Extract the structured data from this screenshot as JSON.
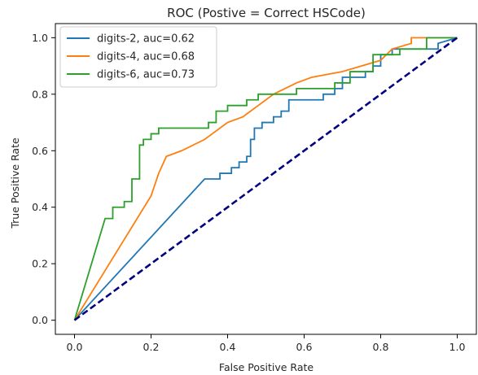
{
  "chart_data": {
    "type": "line",
    "title": "ROC (Postive = Correct HSCode)",
    "xlabel": "False Positive Rate",
    "ylabel": "True Positive Rate",
    "xlim": [
      -0.05,
      1.05
    ],
    "ylim": [
      -0.05,
      1.05
    ],
    "xticks": [
      0.0,
      0.2,
      0.4,
      0.6,
      0.8,
      1.0
    ],
    "xtick_labels": [
      "0.0",
      "0.2",
      "0.4",
      "0.6",
      "0.8",
      "1.0"
    ],
    "yticks": [
      0.0,
      0.2,
      0.4,
      0.6,
      0.8,
      1.0
    ],
    "ytick_labels": [
      "0.0",
      "0.2",
      "0.4",
      "0.6",
      "0.8",
      "1.0"
    ],
    "grid": false,
    "legend_position": "upper-left",
    "series": [
      {
        "name": "digits-2, auc=0.62",
        "color": "#1f77b4",
        "x": [
          0.0,
          0.34,
          0.38,
          0.38,
          0.41,
          0.41,
          0.43,
          0.43,
          0.45,
          0.45,
          0.46,
          0.46,
          0.47,
          0.47,
          0.49,
          0.49,
          0.52,
          0.52,
          0.54,
          0.54,
          0.56,
          0.56,
          0.65,
          0.65,
          0.68,
          0.68,
          0.7,
          0.7,
          0.76,
          0.76,
          0.78,
          0.78,
          0.8,
          0.8,
          0.83,
          0.83,
          0.95,
          0.95,
          1.0
        ],
        "y": [
          0.0,
          0.5,
          0.5,
          0.52,
          0.52,
          0.54,
          0.54,
          0.56,
          0.56,
          0.58,
          0.58,
          0.64,
          0.64,
          0.68,
          0.68,
          0.7,
          0.7,
          0.72,
          0.72,
          0.74,
          0.74,
          0.78,
          0.78,
          0.8,
          0.8,
          0.82,
          0.82,
          0.86,
          0.86,
          0.88,
          0.88,
          0.9,
          0.9,
          0.94,
          0.94,
          0.96,
          0.96,
          0.98,
          1.0
        ]
      },
      {
        "name": "digits-4, auc=0.68",
        "color": "#ff7f0e",
        "x": [
          0.0,
          0.2,
          0.2,
          0.22,
          0.22,
          0.24,
          0.24,
          0.28,
          0.28,
          0.34,
          0.34,
          0.36,
          0.36,
          0.38,
          0.38,
          0.4,
          0.4,
          0.44,
          0.44,
          0.46,
          0.46,
          0.48,
          0.48,
          0.5,
          0.5,
          0.52,
          0.52,
          0.58,
          0.58,
          0.62,
          0.62,
          0.7,
          0.7,
          0.8,
          0.8,
          0.83,
          0.83,
          0.88,
          0.88,
          1.0
        ],
        "y": [
          0.0,
          0.44,
          0.44,
          0.52,
          0.52,
          0.58,
          0.58,
          0.6,
          0.6,
          0.64,
          0.64,
          0.66,
          0.66,
          0.68,
          0.68,
          0.7,
          0.7,
          0.72,
          0.72,
          0.74,
          0.74,
          0.76,
          0.76,
          0.78,
          0.78,
          0.8,
          0.8,
          0.84,
          0.84,
          0.86,
          0.86,
          0.88,
          0.88,
          0.92,
          0.92,
          0.96,
          0.96,
          0.98,
          1.0,
          1.0
        ]
      },
      {
        "name": "digits-6, auc=0.73",
        "color": "#2ca02c",
        "x": [
          0.0,
          0.08,
          0.1,
          0.1,
          0.13,
          0.13,
          0.15,
          0.15,
          0.17,
          0.17,
          0.18,
          0.18,
          0.2,
          0.2,
          0.22,
          0.22,
          0.35,
          0.35,
          0.37,
          0.37,
          0.4,
          0.4,
          0.45,
          0.45,
          0.48,
          0.48,
          0.58,
          0.58,
          0.68,
          0.68,
          0.72,
          0.72,
          0.78,
          0.78,
          0.85,
          0.85,
          0.92,
          0.92,
          1.0
        ],
        "y": [
          0.0,
          0.36,
          0.36,
          0.4,
          0.4,
          0.42,
          0.42,
          0.5,
          0.5,
          0.62,
          0.62,
          0.64,
          0.64,
          0.66,
          0.66,
          0.68,
          0.68,
          0.7,
          0.7,
          0.74,
          0.74,
          0.76,
          0.76,
          0.78,
          0.78,
          0.8,
          0.8,
          0.82,
          0.82,
          0.84,
          0.84,
          0.88,
          0.88,
          0.94,
          0.94,
          0.96,
          0.96,
          1.0,
          1.0
        ]
      },
      {
        "name": "",
        "color": "#000080",
        "style": "dashed",
        "x": [
          0.0,
          1.0
        ],
        "y": [
          0.0,
          1.0
        ]
      }
    ]
  }
}
